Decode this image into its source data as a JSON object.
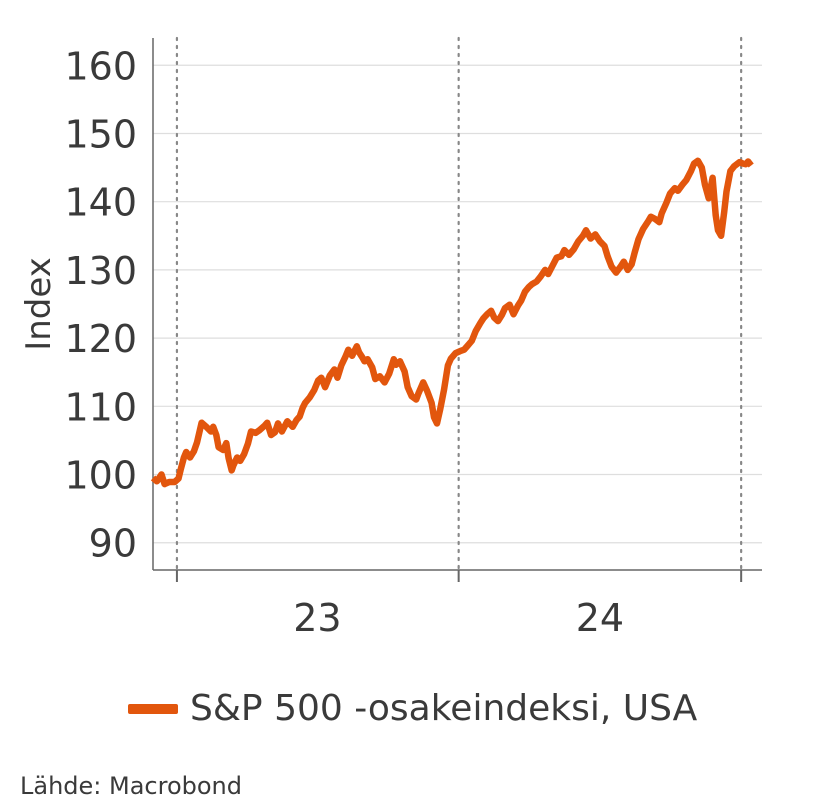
{
  "chart_data": {
    "type": "line",
    "title": "",
    "ylabel": "Index",
    "xlabel": "",
    "ylim": [
      86,
      164
    ],
    "yticks": [
      90,
      100,
      110,
      120,
      130,
      140,
      150,
      160
    ],
    "x_start": "2022-12-01",
    "x_end": "2025-01-28",
    "year_boundaries": [
      "2023-01-01",
      "2024-01-01",
      "2025-01-01"
    ],
    "x_tick_labels": [
      {
        "label": "23",
        "at": "2023-07-02"
      },
      {
        "label": "24",
        "at": "2024-07-02"
      }
    ],
    "grid": {
      "horizontal": true,
      "vertical_dotted_at_year_boundaries": true
    },
    "legend_position": "bottom",
    "colors": {
      "line": "#e2560d",
      "grid": "#dedede",
      "axis": "#666666",
      "dotted": "#888888"
    },
    "series": [
      {
        "name": "S&P 500 -osakeindeksi, USA",
        "points": [
          [
            "2022-12-01",
            99.5
          ],
          [
            "2022-12-06",
            99.0
          ],
          [
            "2022-12-12",
            100.0
          ],
          [
            "2022-12-16",
            98.6
          ],
          [
            "2022-12-22",
            98.9
          ],
          [
            "2022-12-29",
            98.9
          ],
          [
            "2023-01-03",
            99.4
          ],
          [
            "2023-01-06",
            100.8
          ],
          [
            "2023-01-10",
            102.5
          ],
          [
            "2023-01-13",
            103.3
          ],
          [
            "2023-01-18",
            102.5
          ],
          [
            "2023-01-23",
            103.4
          ],
          [
            "2023-01-27",
            104.7
          ],
          [
            "2023-02-02",
            107.6
          ],
          [
            "2023-02-08",
            107.0
          ],
          [
            "2023-02-14",
            106.3
          ],
          [
            "2023-02-17",
            107.0
          ],
          [
            "2023-02-21",
            105.8
          ],
          [
            "2023-02-24",
            104.0
          ],
          [
            "2023-03-02",
            103.6
          ],
          [
            "2023-03-06",
            104.6
          ],
          [
            "2023-03-09",
            102.4
          ],
          [
            "2023-03-13",
            100.6
          ],
          [
            "2023-03-15",
            101.3
          ],
          [
            "2023-03-20",
            102.5
          ],
          [
            "2023-03-24",
            102.0
          ],
          [
            "2023-03-29",
            103.0
          ],
          [
            "2023-04-03",
            104.5
          ],
          [
            "2023-04-07",
            106.3
          ],
          [
            "2023-04-13",
            106.1
          ],
          [
            "2023-04-18",
            106.5
          ],
          [
            "2023-04-25",
            107.2
          ],
          [
            "2023-04-28",
            107.6
          ],
          [
            "2023-05-03",
            105.8
          ],
          [
            "2023-05-08",
            106.2
          ],
          [
            "2023-05-12",
            107.5
          ],
          [
            "2023-05-17",
            106.3
          ],
          [
            "2023-05-24",
            107.8
          ],
          [
            "2023-05-31",
            107.0
          ],
          [
            "2023-06-05",
            108.0
          ],
          [
            "2023-06-09",
            108.5
          ],
          [
            "2023-06-13",
            109.8
          ],
          [
            "2023-06-16",
            110.5
          ],
          [
            "2023-06-22",
            111.3
          ],
          [
            "2023-06-28",
            112.4
          ],
          [
            "2023-07-03",
            113.8
          ],
          [
            "2023-07-07",
            114.2
          ],
          [
            "2023-07-12",
            112.8
          ],
          [
            "2023-07-18",
            114.5
          ],
          [
            "2023-07-24",
            115.4
          ],
          [
            "2023-07-28",
            114.2
          ],
          [
            "2023-08-02",
            116.0
          ],
          [
            "2023-08-07",
            117.2
          ],
          [
            "2023-08-11",
            118.3
          ],
          [
            "2023-08-16",
            117.4
          ],
          [
            "2023-08-22",
            118.8
          ],
          [
            "2023-08-25",
            117.9
          ],
          [
            "2023-08-29",
            117.2
          ],
          [
            "2023-09-01",
            116.6
          ],
          [
            "2023-09-05",
            116.9
          ],
          [
            "2023-09-11",
            115.7
          ],
          [
            "2023-09-15",
            114.0
          ],
          [
            "2023-09-21",
            114.4
          ],
          [
            "2023-09-27",
            113.5
          ],
          [
            "2023-10-03",
            114.8
          ],
          [
            "2023-10-09",
            116.9
          ],
          [
            "2023-10-12",
            116.1
          ],
          [
            "2023-10-17",
            116.6
          ],
          [
            "2023-10-23",
            115.1
          ],
          [
            "2023-10-27",
            112.8
          ],
          [
            "2023-11-01",
            111.5
          ],
          [
            "2023-11-07",
            111.0
          ],
          [
            "2023-11-10",
            111.9
          ],
          [
            "2023-11-16",
            113.5
          ],
          [
            "2023-11-21",
            112.3
          ],
          [
            "2023-11-27",
            110.5
          ],
          [
            "2023-11-30",
            108.4
          ],
          [
            "2023-12-04",
            107.5
          ],
          [
            "2023-12-08",
            109.5
          ],
          [
            "2023-12-13",
            112.4
          ],
          [
            "2023-12-18",
            116.0
          ],
          [
            "2023-12-22",
            117.0
          ],
          [
            "2023-12-28",
            117.8
          ],
          [
            "2024-01-03",
            118.1
          ],
          [
            "2024-01-08",
            118.3
          ],
          [
            "2024-01-12",
            118.8
          ],
          [
            "2024-01-18",
            119.6
          ],
          [
            "2024-01-23",
            121.0
          ],
          [
            "2024-01-29",
            122.2
          ],
          [
            "2024-02-02",
            122.9
          ],
          [
            "2024-02-07",
            123.5
          ],
          [
            "2024-02-12",
            124.0
          ],
          [
            "2024-02-16",
            123.0
          ],
          [
            "2024-02-21",
            122.5
          ],
          [
            "2024-02-26",
            123.4
          ],
          [
            "2024-03-01",
            124.4
          ],
          [
            "2024-03-07",
            124.9
          ],
          [
            "2024-03-12",
            123.5
          ],
          [
            "2024-03-18",
            124.8
          ],
          [
            "2024-03-22",
            125.5
          ],
          [
            "2024-03-27",
            126.8
          ],
          [
            "2024-04-01",
            127.5
          ],
          [
            "2024-04-05",
            127.9
          ],
          [
            "2024-04-11",
            128.3
          ],
          [
            "2024-04-16",
            129.0
          ],
          [
            "2024-04-22",
            130.0
          ],
          [
            "2024-04-26",
            129.4
          ],
          [
            "2024-05-01",
            130.5
          ],
          [
            "2024-05-07",
            131.8
          ],
          [
            "2024-05-13",
            132.0
          ],
          [
            "2024-05-17",
            132.9
          ],
          [
            "2024-05-23",
            132.2
          ],
          [
            "2024-05-29",
            133.0
          ],
          [
            "2024-06-04",
            134.2
          ],
          [
            "2024-06-10",
            135.0
          ],
          [
            "2024-06-14",
            135.8
          ],
          [
            "2024-06-20",
            134.6
          ],
          [
            "2024-06-26",
            135.2
          ],
          [
            "2024-07-02",
            134.2
          ],
          [
            "2024-07-08",
            133.5
          ],
          [
            "2024-07-12",
            132.0
          ],
          [
            "2024-07-17",
            130.5
          ],
          [
            "2024-07-23",
            129.6
          ],
          [
            "2024-07-29",
            130.5
          ],
          [
            "2024-08-02",
            131.2
          ],
          [
            "2024-08-07",
            130.0
          ],
          [
            "2024-08-12",
            130.8
          ],
          [
            "2024-08-16",
            132.5
          ],
          [
            "2024-08-21",
            134.5
          ],
          [
            "2024-08-27",
            136.0
          ],
          [
            "2024-09-03",
            137.2
          ],
          [
            "2024-09-06",
            137.8
          ],
          [
            "2024-09-11",
            137.5
          ],
          [
            "2024-09-17",
            137.0
          ],
          [
            "2024-09-20",
            138.3
          ],
          [
            "2024-09-26",
            139.8
          ],
          [
            "2024-10-01",
            141.2
          ],
          [
            "2024-10-07",
            142.0
          ],
          [
            "2024-10-11",
            141.6
          ],
          [
            "2024-10-17",
            142.5
          ],
          [
            "2024-10-22",
            143.2
          ],
          [
            "2024-10-28",
            144.5
          ],
          [
            "2024-11-01",
            145.6
          ],
          [
            "2024-11-06",
            146.0
          ],
          [
            "2024-11-11",
            145.0
          ],
          [
            "2024-11-15",
            142.5
          ],
          [
            "2024-11-20",
            140.5
          ],
          [
            "2024-11-25",
            143.5
          ],
          [
            "2024-11-29",
            138.0
          ],
          [
            "2024-12-02",
            135.8
          ],
          [
            "2024-12-06",
            135.0
          ],
          [
            "2024-12-10",
            138.5
          ],
          [
            "2024-12-13",
            141.5
          ],
          [
            "2024-12-18",
            144.5
          ],
          [
            "2024-12-23",
            145.2
          ],
          [
            "2024-12-30",
            145.8
          ],
          [
            "2025-01-03",
            145.6
          ],
          [
            "2025-01-07",
            145.5
          ],
          [
            "2025-01-10",
            145.9
          ],
          [
            "2025-01-14",
            145.3
          ]
        ]
      }
    ]
  },
  "legend": {
    "label": "S&P 500 -osakeindeksi, USA"
  },
  "source": "Lähde: Macrobond"
}
